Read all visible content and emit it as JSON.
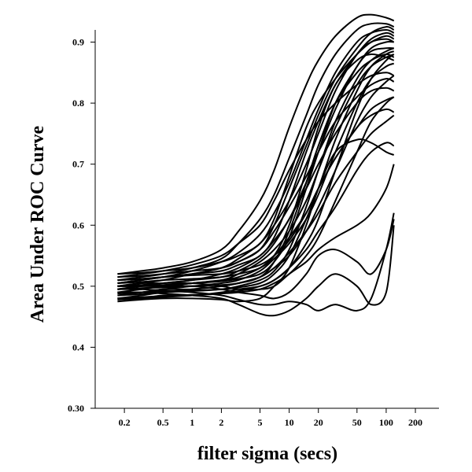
{
  "chart_data": {
    "type": "line",
    "xlabel": "filter sigma (secs)",
    "ylabel": "Area Under ROC Curve",
    "x_scale": "log",
    "xlim": [
      0.1,
      350
    ],
    "ylim": [
      0.3,
      0.92
    ],
    "x_ticks": [
      {
        "value": 0.2,
        "label": "0.2"
      },
      {
        "value": 0.5,
        "label": "0.5"
      },
      {
        "value": 1,
        "label": "1"
      },
      {
        "value": 2,
        "label": "2"
      },
      {
        "value": 5,
        "label": "5"
      },
      {
        "value": 10,
        "label": "10"
      },
      {
        "value": 20,
        "label": "20"
      },
      {
        "value": 50,
        "label": "50"
      },
      {
        "value": 100,
        "label": "100"
      },
      {
        "value": 200,
        "label": "200"
      }
    ],
    "y_ticks": [
      {
        "value": 0.3,
        "label": "0.30"
      },
      {
        "value": 0.4,
        "label": "0.4"
      },
      {
        "value": 0.5,
        "label": "0.5"
      },
      {
        "value": 0.6,
        "label": "0.6"
      },
      {
        "value": 0.7,
        "label": "0.7"
      },
      {
        "value": 0.8,
        "label": "0.8"
      },
      {
        "value": 0.9,
        "label": "0.9"
      }
    ],
    "x": [
      0.17,
      0.3,
      0.5,
      1,
      2,
      3,
      5,
      7,
      10,
      15,
      20,
      30,
      50,
      70,
      100,
      120
    ],
    "series": [
      {
        "values": [
          0.52,
          0.525,
          0.53,
          0.54,
          0.56,
          0.59,
          0.64,
          0.69,
          0.76,
          0.83,
          0.87,
          0.91,
          0.94,
          0.945,
          0.94,
          0.935
        ]
      },
      {
        "values": [
          0.51,
          0.515,
          0.52,
          0.53,
          0.545,
          0.57,
          0.61,
          0.65,
          0.71,
          0.78,
          0.83,
          0.88,
          0.92,
          0.93,
          0.93,
          0.925
        ]
      },
      {
        "values": [
          0.505,
          0.51,
          0.515,
          0.525,
          0.54,
          0.555,
          0.585,
          0.62,
          0.67,
          0.74,
          0.79,
          0.85,
          0.9,
          0.915,
          0.92,
          0.915
        ]
      },
      {
        "values": [
          0.5,
          0.505,
          0.51,
          0.52,
          0.53,
          0.545,
          0.57,
          0.6,
          0.64,
          0.7,
          0.75,
          0.82,
          0.88,
          0.9,
          0.905,
          0.9
        ]
      },
      {
        "values": [
          0.495,
          0.5,
          0.505,
          0.51,
          0.52,
          0.53,
          0.55,
          0.575,
          0.61,
          0.67,
          0.72,
          0.79,
          0.86,
          0.885,
          0.89,
          0.89
        ]
      },
      {
        "values": [
          0.49,
          0.495,
          0.5,
          0.505,
          0.51,
          0.52,
          0.54,
          0.56,
          0.59,
          0.64,
          0.69,
          0.76,
          0.83,
          0.86,
          0.875,
          0.88
        ]
      },
      {
        "values": [
          0.485,
          0.49,
          0.495,
          0.5,
          0.505,
          0.51,
          0.525,
          0.545,
          0.57,
          0.61,
          0.65,
          0.72,
          0.8,
          0.84,
          0.86,
          0.865
        ]
      },
      {
        "values": [
          0.48,
          0.485,
          0.49,
          0.495,
          0.5,
          0.505,
          0.515,
          0.53,
          0.55,
          0.59,
          0.63,
          0.69,
          0.77,
          0.81,
          0.835,
          0.845
        ]
      },
      {
        "values": [
          0.5,
          0.505,
          0.505,
          0.51,
          0.515,
          0.525,
          0.545,
          0.57,
          0.61,
          0.66,
          0.7,
          0.75,
          0.8,
          0.82,
          0.825,
          0.82
        ]
      },
      {
        "values": [
          0.515,
          0.52,
          0.525,
          0.535,
          0.55,
          0.57,
          0.6,
          0.64,
          0.69,
          0.74,
          0.77,
          0.8,
          0.83,
          0.845,
          0.85,
          0.845
        ]
      },
      {
        "values": [
          0.505,
          0.51,
          0.515,
          0.52,
          0.53,
          0.54,
          0.56,
          0.59,
          0.63,
          0.68,
          0.72,
          0.77,
          0.81,
          0.83,
          0.84,
          0.835
        ]
      },
      {
        "values": [
          0.495,
          0.5,
          0.5,
          0.505,
          0.51,
          0.515,
          0.53,
          0.55,
          0.58,
          0.62,
          0.66,
          0.71,
          0.76,
          0.79,
          0.805,
          0.81
        ]
      },
      {
        "values": [
          0.49,
          0.49,
          0.495,
          0.495,
          0.5,
          0.505,
          0.515,
          0.53,
          0.555,
          0.59,
          0.62,
          0.67,
          0.72,
          0.75,
          0.77,
          0.78
        ]
      },
      {
        "values": [
          0.48,
          0.48,
          0.485,
          0.485,
          0.49,
          0.495,
          0.5,
          0.51,
          0.53,
          0.56,
          0.59,
          0.63,
          0.69,
          0.72,
          0.735,
          0.73
        ]
      },
      {
        "values": [
          0.475,
          0.478,
          0.48,
          0.48,
          0.478,
          0.475,
          0.48,
          0.5,
          0.53,
          0.6,
          0.66,
          0.72,
          0.74,
          0.735,
          0.72,
          0.715
        ]
      },
      {
        "values": [
          0.52,
          0.522,
          0.525,
          0.53,
          0.54,
          0.55,
          0.57,
          0.61,
          0.68,
          0.76,
          0.8,
          0.84,
          0.88,
          0.9,
          0.91,
          0.905
        ]
      },
      {
        "values": [
          0.51,
          0.512,
          0.515,
          0.52,
          0.525,
          0.535,
          0.55,
          0.58,
          0.64,
          0.72,
          0.77,
          0.83,
          0.88,
          0.905,
          0.915,
          0.91
        ]
      },
      {
        "values": [
          0.5,
          0.5,
          0.502,
          0.505,
          0.508,
          0.512,
          0.52,
          0.54,
          0.58,
          0.66,
          0.72,
          0.8,
          0.86,
          0.89,
          0.9,
          0.9
        ]
      },
      {
        "values": [
          0.485,
          0.487,
          0.49,
          0.492,
          0.495,
          0.5,
          0.51,
          0.525,
          0.56,
          0.63,
          0.69,
          0.77,
          0.84,
          0.87,
          0.885,
          0.89
        ]
      },
      {
        "values": [
          0.478,
          0.48,
          0.482,
          0.485,
          0.488,
          0.492,
          0.5,
          0.51,
          0.53,
          0.57,
          0.61,
          0.69,
          0.79,
          0.84,
          0.87,
          0.88
        ]
      },
      {
        "values": [
          0.5,
          0.5,
          0.5,
          0.5,
          0.495,
          0.49,
          0.485,
          0.48,
          0.49,
          0.52,
          0.55,
          0.56,
          0.54,
          0.52,
          0.56,
          0.61
        ]
      },
      {
        "values": [
          0.495,
          0.495,
          0.493,
          0.49,
          0.485,
          0.478,
          0.47,
          0.47,
          0.475,
          0.47,
          0.46,
          0.47,
          0.46,
          0.48,
          0.56,
          0.62
        ]
      },
      {
        "values": [
          0.49,
          0.49,
          0.488,
          0.485,
          0.48,
          0.47,
          0.455,
          0.452,
          0.46,
          0.48,
          0.5,
          0.52,
          0.5,
          0.47,
          0.49,
          0.6
        ]
      },
      {
        "values": [
          0.5,
          0.502,
          0.505,
          0.505,
          0.5,
          0.495,
          0.495,
          0.5,
          0.52,
          0.54,
          0.56,
          0.58,
          0.6,
          0.62,
          0.66,
          0.7
        ]
      },
      {
        "values": [
          0.51,
          0.512,
          0.515,
          0.518,
          0.52,
          0.525,
          0.535,
          0.55,
          0.575,
          0.62,
          0.66,
          0.71,
          0.76,
          0.78,
          0.79,
          0.785
        ]
      },
      {
        "values": [
          0.505,
          0.507,
          0.51,
          0.512,
          0.515,
          0.52,
          0.53,
          0.55,
          0.6,
          0.69,
          0.76,
          0.83,
          0.87,
          0.88,
          0.875,
          0.87
        ]
      },
      {
        "values": [
          0.495,
          0.497,
          0.498,
          0.5,
          0.502,
          0.505,
          0.515,
          0.54,
          0.59,
          0.67,
          0.73,
          0.8,
          0.85,
          0.87,
          0.88,
          0.875
        ]
      },
      {
        "values": [
          0.488,
          0.49,
          0.492,
          0.493,
          0.495,
          0.498,
          0.505,
          0.52,
          0.55,
          0.61,
          0.66,
          0.74,
          0.82,
          0.86,
          0.88,
          0.885
        ]
      },
      {
        "values": [
          0.515,
          0.517,
          0.52,
          0.525,
          0.53,
          0.54,
          0.56,
          0.6,
          0.66,
          0.73,
          0.78,
          0.84,
          0.89,
          0.915,
          0.925,
          0.92
        ]
      },
      {
        "values": [
          0.48,
          0.482,
          0.484,
          0.486,
          0.488,
          0.49,
          0.495,
          0.505,
          0.52,
          0.55,
          0.58,
          0.64,
          0.72,
          0.77,
          0.8,
          0.81
        ]
      }
    ]
  }
}
